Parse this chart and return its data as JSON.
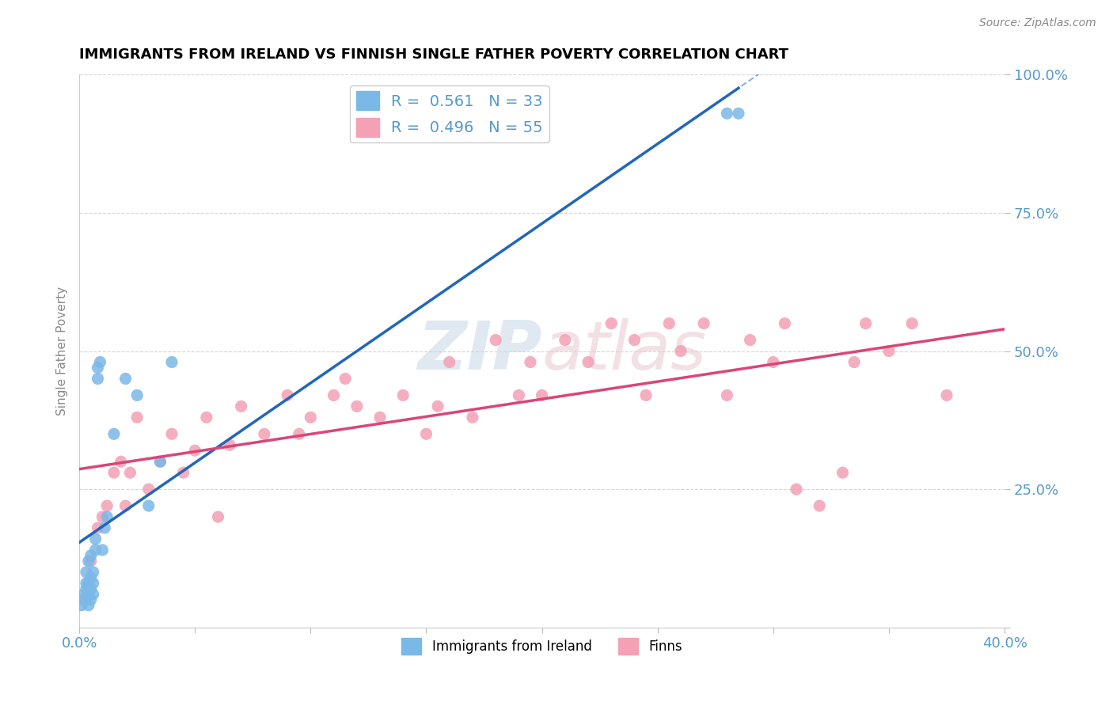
{
  "title": "IMMIGRANTS FROM IRELAND VS FINNISH SINGLE FATHER POVERTY CORRELATION CHART",
  "source": "Source: ZipAtlas.com",
  "ylabel": "Single Father Poverty",
  "xlim": [
    0.0,
    0.4
  ],
  "ylim": [
    0.0,
    1.0
  ],
  "xticks": [
    0.0,
    0.05,
    0.1,
    0.15,
    0.2,
    0.25,
    0.3,
    0.35,
    0.4
  ],
  "yticks": [
    0.0,
    0.25,
    0.5,
    0.75,
    1.0
  ],
  "blue_R": 0.561,
  "blue_N": 33,
  "pink_R": 0.496,
  "pink_N": 55,
  "blue_color": "#7ab8e8",
  "pink_color": "#f4a0b5",
  "blue_line_color": "#2266bb",
  "pink_line_color": "#dd4477",
  "tick_color": "#5599cc",
  "watermark_color": "#d0dde8",
  "watermark_pink": "#e8d0d8",
  "legend_label_blue": "Immigrants from Ireland",
  "legend_label_pink": "Finns",
  "blue_x": [
    0.001,
    0.002,
    0.002,
    0.003,
    0.003,
    0.003,
    0.004,
    0.004,
    0.004,
    0.004,
    0.005,
    0.005,
    0.005,
    0.005,
    0.006,
    0.006,
    0.006,
    0.007,
    0.007,
    0.008,
    0.008,
    0.009,
    0.01,
    0.011,
    0.012,
    0.015,
    0.02,
    0.025,
    0.03,
    0.035,
    0.04,
    0.28,
    0.285
  ],
  "blue_y": [
    0.04,
    0.05,
    0.06,
    0.07,
    0.08,
    0.1,
    0.04,
    0.06,
    0.08,
    0.12,
    0.05,
    0.07,
    0.09,
    0.13,
    0.06,
    0.08,
    0.1,
    0.14,
    0.16,
    0.45,
    0.47,
    0.48,
    0.14,
    0.18,
    0.2,
    0.35,
    0.45,
    0.42,
    0.22,
    0.3,
    0.48,
    0.93,
    0.93
  ],
  "pink_x": [
    0.005,
    0.008,
    0.01,
    0.012,
    0.015,
    0.018,
    0.02,
    0.022,
    0.025,
    0.03,
    0.035,
    0.04,
    0.045,
    0.05,
    0.055,
    0.06,
    0.065,
    0.07,
    0.08,
    0.09,
    0.095,
    0.1,
    0.11,
    0.115,
    0.12,
    0.13,
    0.14,
    0.15,
    0.155,
    0.16,
    0.17,
    0.18,
    0.19,
    0.195,
    0.2,
    0.21,
    0.22,
    0.23,
    0.24,
    0.245,
    0.255,
    0.26,
    0.27,
    0.28,
    0.29,
    0.3,
    0.305,
    0.31,
    0.32,
    0.33,
    0.335,
    0.34,
    0.35,
    0.36,
    0.375
  ],
  "pink_y": [
    0.12,
    0.18,
    0.2,
    0.22,
    0.28,
    0.3,
    0.22,
    0.28,
    0.38,
    0.25,
    0.3,
    0.35,
    0.28,
    0.32,
    0.38,
    0.2,
    0.33,
    0.4,
    0.35,
    0.42,
    0.35,
    0.38,
    0.42,
    0.45,
    0.4,
    0.38,
    0.42,
    0.35,
    0.4,
    0.48,
    0.38,
    0.52,
    0.42,
    0.48,
    0.42,
    0.52,
    0.48,
    0.55,
    0.52,
    0.42,
    0.55,
    0.5,
    0.55,
    0.42,
    0.52,
    0.48,
    0.55,
    0.25,
    0.22,
    0.28,
    0.48,
    0.55,
    0.5,
    0.55,
    0.42
  ]
}
